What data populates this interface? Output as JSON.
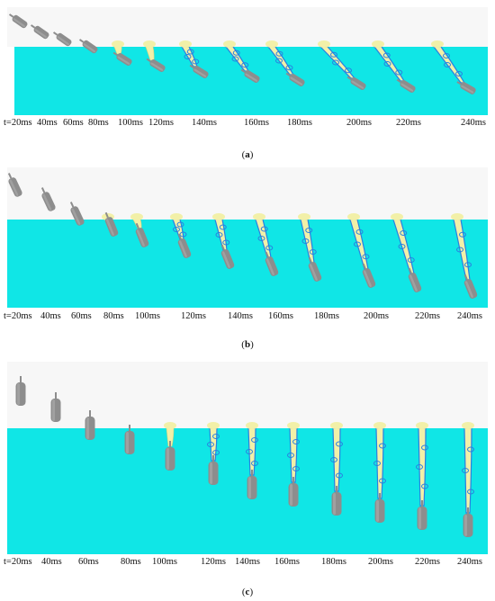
{
  "panels": [
    {
      "id": "a",
      "caption_open": "(",
      "caption_letter": "a",
      "caption_close": ")",
      "times": [
        "t=20ms",
        "40ms",
        "60ms",
        "80ms",
        "100ms",
        "120ms",
        "140ms",
        "160ms",
        "180ms",
        "200ms",
        "220ms",
        "240ms"
      ]
    },
    {
      "id": "b",
      "caption_open": "(",
      "caption_letter": "b",
      "caption_close": ")",
      "times": [
        "t=20ms",
        "40ms",
        "60ms",
        "80ms",
        "100ms",
        "120ms",
        "140ms",
        "160ms",
        "180ms",
        "200ms",
        "220ms",
        "240ms"
      ]
    },
    {
      "id": "c",
      "caption_open": "(",
      "caption_letter": "c",
      "caption_close": ")",
      "times": [
        "t=20ms",
        "40ms",
        "60ms",
        "80ms",
        "100ms",
        "120ms",
        "140ms",
        "160ms",
        "180ms",
        "200ms",
        "220ms",
        "240ms"
      ]
    }
  ],
  "colors": {
    "air": "#f7f7f7",
    "water": "#10e6e6",
    "body": "#8d8d8d",
    "cavity_yellow": "#f2f0a8",
    "cavity_blue": "#2a7fe0"
  }
}
